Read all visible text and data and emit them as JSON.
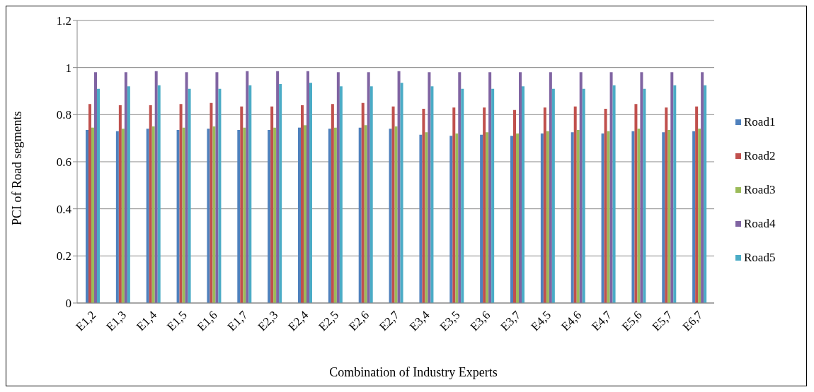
{
  "chart_data": {
    "type": "bar",
    "xlabel": "Combination of Industry Experts",
    "ylabel": "PCI of Road segments",
    "categories": [
      "E1,2",
      "E1,3",
      "E1,4",
      "E1,5",
      "E1,6",
      "E1,7",
      "E2,3",
      "E2,4",
      "E2,5",
      "E2,6",
      "E2,7",
      "E3,4",
      "E3,5",
      "E3,6",
      "E3,7",
      "E4,5",
      "E4,6",
      "E4,7",
      "E5,6",
      "E5,7",
      "E6,7"
    ],
    "series": [
      {
        "name": "Road1",
        "color": "#4f81bd",
        "values": [
          0.735,
          0.73,
          0.74,
          0.735,
          0.74,
          0.735,
          0.735,
          0.745,
          0.74,
          0.745,
          0.74,
          0.715,
          0.71,
          0.715,
          0.71,
          0.72,
          0.725,
          0.72,
          0.73,
          0.725,
          0.73
        ]
      },
      {
        "name": "Road2",
        "color": "#c0504d",
        "values": [
          0.845,
          0.84,
          0.84,
          0.845,
          0.85,
          0.835,
          0.835,
          0.84,
          0.845,
          0.85,
          0.835,
          0.825,
          0.83,
          0.83,
          0.82,
          0.83,
          0.835,
          0.825,
          0.845,
          0.83,
          0.835
        ]
      },
      {
        "name": "Road3",
        "color": "#9bbb59",
        "values": [
          0.745,
          0.74,
          0.75,
          0.745,
          0.75,
          0.745,
          0.745,
          0.755,
          0.745,
          0.755,
          0.75,
          0.725,
          0.72,
          0.725,
          0.72,
          0.73,
          0.735,
          0.73,
          0.74,
          0.735,
          0.74
        ]
      },
      {
        "name": "Road4",
        "color": "#8064a2",
        "values": [
          0.98,
          0.98,
          0.985,
          0.98,
          0.98,
          0.985,
          0.985,
          0.985,
          0.98,
          0.98,
          0.985,
          0.98,
          0.98,
          0.98,
          0.98,
          0.98,
          0.98,
          0.98,
          0.98,
          0.98,
          0.98
        ]
      },
      {
        "name": "Road5",
        "color": "#4bacc6",
        "values": [
          0.91,
          0.92,
          0.925,
          0.91,
          0.91,
          0.925,
          0.93,
          0.935,
          0.92,
          0.92,
          0.935,
          0.92,
          0.91,
          0.91,
          0.92,
          0.91,
          0.91,
          0.925,
          0.91,
          0.925,
          0.925
        ]
      }
    ],
    "ylim": [
      0,
      1.2
    ],
    "yticks": [
      0,
      0.2,
      0.4,
      0.6,
      0.8,
      1,
      1.2
    ],
    "grid": "y",
    "legend": "right"
  }
}
